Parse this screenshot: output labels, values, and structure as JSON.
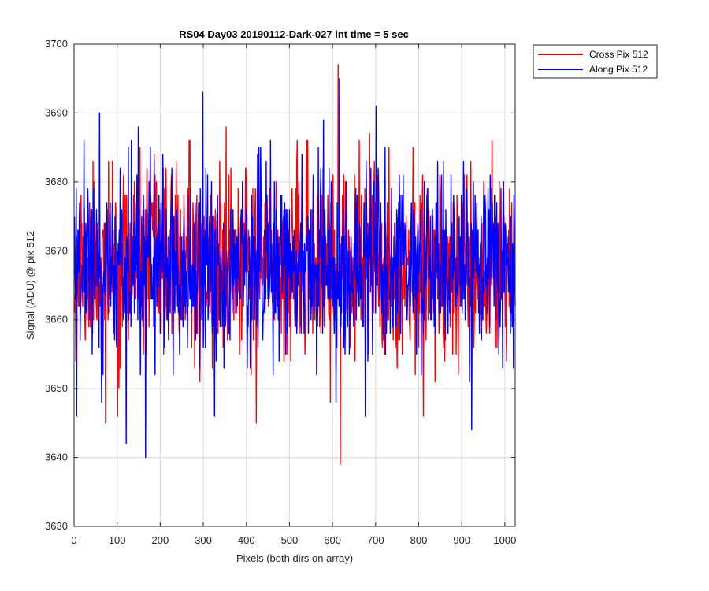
{
  "chart_data": {
    "type": "line",
    "title": "RS04 Day03 20190112-Dark-027 int time = 5 sec",
    "xlabel": "Pixels (both dirs on array)",
    "ylabel": "Signal (ADU) @ pix 512",
    "xlim": [
      0,
      1024
    ],
    "ylim": [
      3630,
      3700
    ],
    "xticks": [
      0,
      100,
      200,
      300,
      400,
      500,
      600,
      700,
      800,
      900,
      1000
    ],
    "yticks": [
      3630,
      3640,
      3650,
      3660,
      3670,
      3680,
      3690,
      3700
    ],
    "grid": true,
    "legend_position": "outside-top-right",
    "noise_model": {
      "n_points": 1024,
      "mean": 3668,
      "std": 6.5
    },
    "series": [
      {
        "name": "Cross Pix 512",
        "color": "#ff0000",
        "seed": 11,
        "extremes": [
          {
            "x": 72,
            "y": 3645
          },
          {
            "x": 100,
            "y": 3646
          },
          {
            "x": 262,
            "y": 3679
          },
          {
            "x": 352,
            "y": 3688
          },
          {
            "x": 422,
            "y": 3645
          },
          {
            "x": 612,
            "y": 3697
          },
          {
            "x": 617,
            "y": 3639
          },
          {
            "x": 685,
            "y": 3687
          },
          {
            "x": 810,
            "y": 3646
          },
          {
            "x": 920,
            "y": 3683
          }
        ]
      },
      {
        "name": "Along Pix 512",
        "color": "#0000ff",
        "seed": 29,
        "extremes": [
          {
            "x": 5,
            "y": 3646
          },
          {
            "x": 22,
            "y": 3686
          },
          {
            "x": 58,
            "y": 3690
          },
          {
            "x": 120,
            "y": 3642
          },
          {
            "x": 148,
            "y": 3688
          },
          {
            "x": 165,
            "y": 3640
          },
          {
            "x": 298,
            "y": 3693
          },
          {
            "x": 325,
            "y": 3646
          },
          {
            "x": 578,
            "y": 3689
          },
          {
            "x": 615,
            "y": 3695
          },
          {
            "x": 675,
            "y": 3646
          },
          {
            "x": 700,
            "y": 3691
          },
          {
            "x": 922,
            "y": 3644
          }
        ]
      }
    ]
  }
}
